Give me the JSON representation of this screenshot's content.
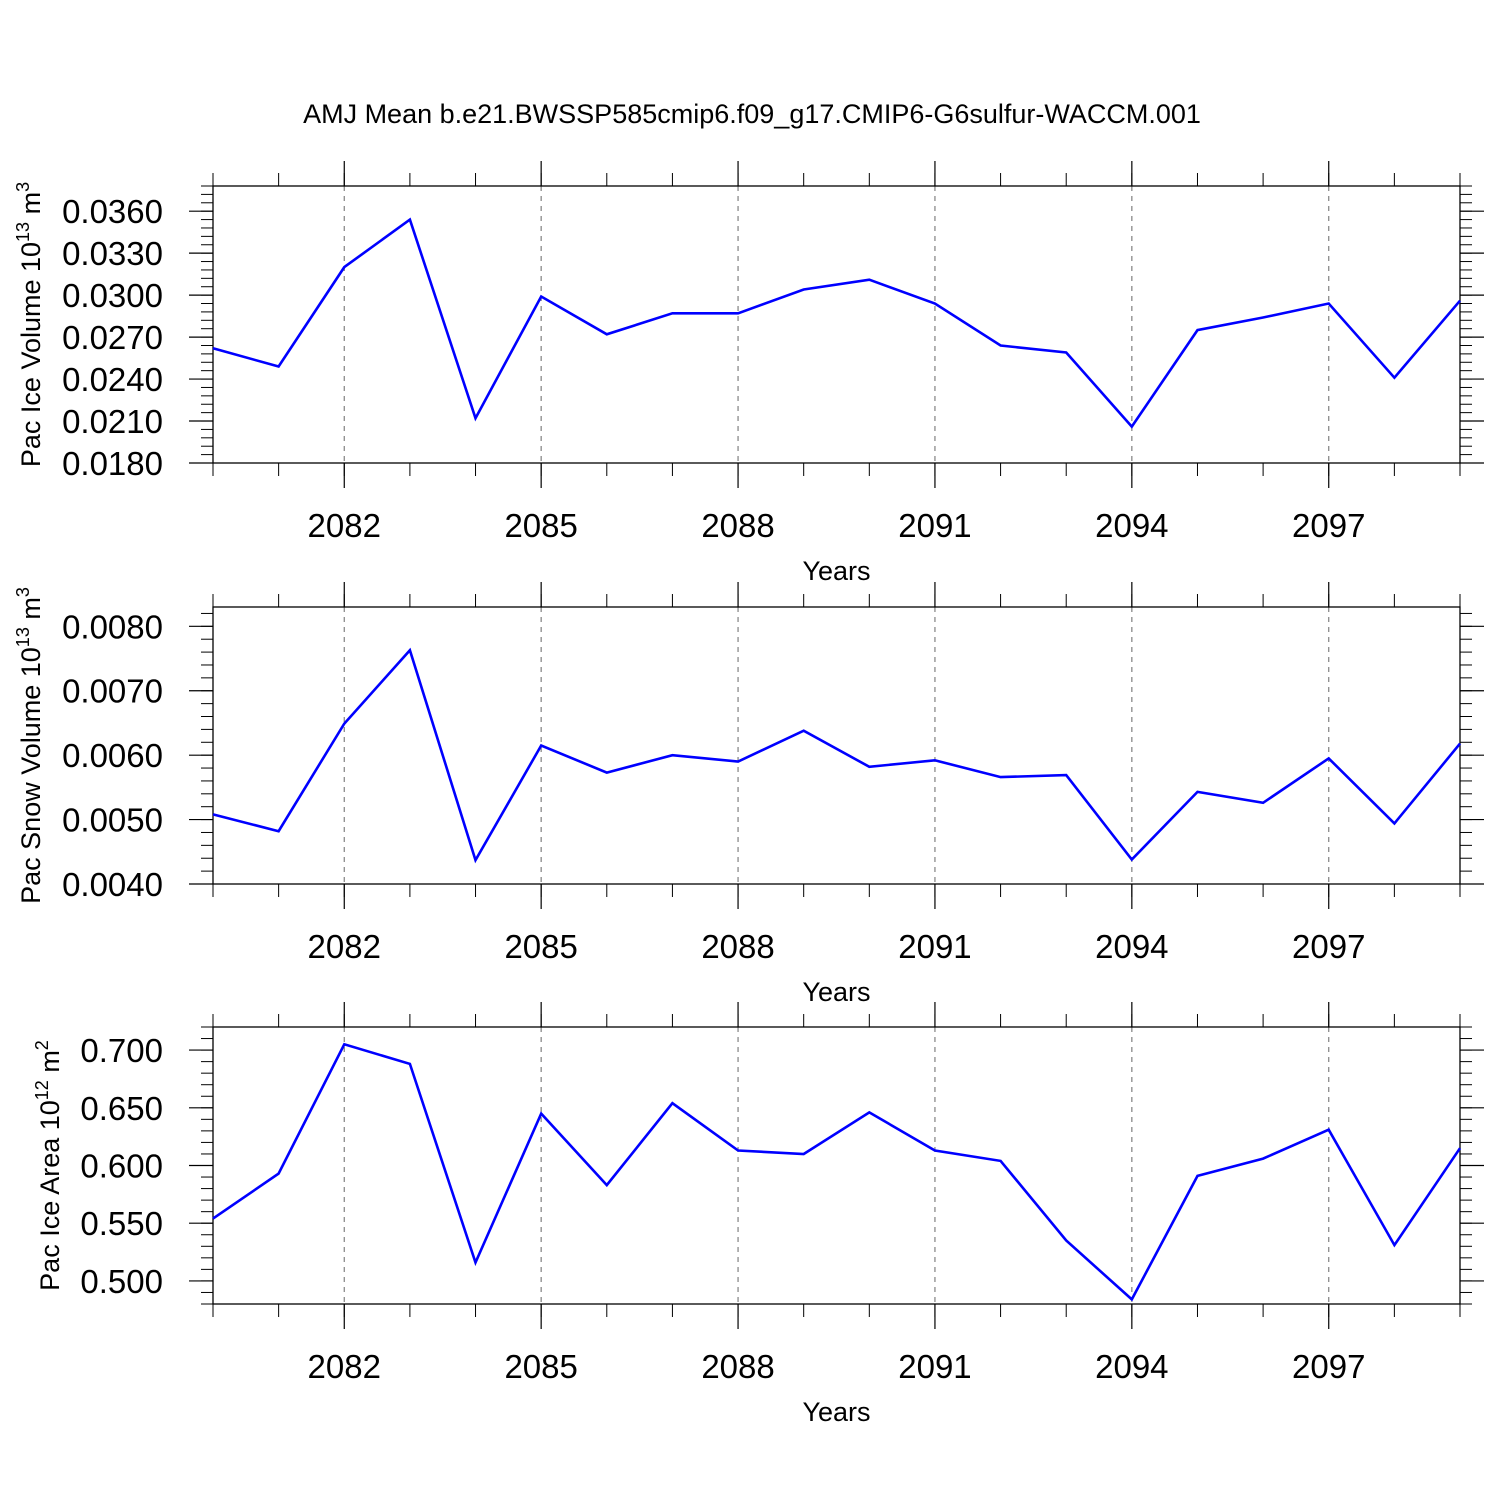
{
  "title": "AMJ Mean b.e21.BWSSP585cmip6.f09_g17.CMIP6-G6sulfur-WACCM.001",
  "colors": {
    "line": "#0000ff",
    "axes": "#000000",
    "grid": "#808080"
  },
  "chart_data": [
    {
      "type": "line",
      "ylabel_main": "Pac Ice Volume 10",
      "ylabel_exp": "13",
      "ylabel_unit": " m",
      "ylabel_unit_exp": "3",
      "xlabel": "Years",
      "xlim": [
        2080,
        2099
      ],
      "ylim": [
        0.018,
        0.0378
      ],
      "yticks": [
        0.018,
        0.021,
        0.024,
        0.027,
        0.03,
        0.033,
        0.036
      ],
      "ytick_labels": [
        "0.0180",
        "0.0210",
        "0.0240",
        "0.0270",
        "0.0300",
        "0.0330",
        "0.0360"
      ],
      "xticks": [
        2082,
        2085,
        2088,
        2091,
        2094,
        2097
      ],
      "xtick_labels": [
        "2082",
        "2085",
        "2088",
        "2091",
        "2094",
        "2097"
      ],
      "grid": "vertical dashed at major x ticks",
      "x": [
        2080,
        2081,
        2082,
        2083,
        2084,
        2085,
        2086,
        2087,
        2088,
        2089,
        2090,
        2091,
        2092,
        2093,
        2094,
        2095,
        2096,
        2097,
        2098,
        2099
      ],
      "values": [
        0.0262,
        0.0249,
        0.032,
        0.0354,
        0.0212,
        0.0299,
        0.0272,
        0.0287,
        0.0287,
        0.0304,
        0.0311,
        0.0294,
        0.0264,
        0.0259,
        0.0206,
        0.0275,
        0.0284,
        0.0294,
        0.0241,
        0.0296
      ]
    },
    {
      "type": "line",
      "ylabel_main": "Pac Snow Volume 10",
      "ylabel_exp": "13",
      "ylabel_unit": " m",
      "ylabel_unit_exp": "3",
      "xlabel": "Years",
      "xlim": [
        2080,
        2099
      ],
      "ylim": [
        0.004,
        0.0083
      ],
      "yticks": [
        0.004,
        0.005,
        0.006,
        0.007,
        0.008
      ],
      "ytick_labels": [
        "0.0040",
        "0.0050",
        "0.0060",
        "0.0070",
        "0.0080"
      ],
      "xticks": [
        2082,
        2085,
        2088,
        2091,
        2094,
        2097
      ],
      "xtick_labels": [
        "2082",
        "2085",
        "2088",
        "2091",
        "2094",
        "2097"
      ],
      "grid": "vertical dashed at major x ticks",
      "x": [
        2080,
        2081,
        2082,
        2083,
        2084,
        2085,
        2086,
        2087,
        2088,
        2089,
        2090,
        2091,
        2092,
        2093,
        2094,
        2095,
        2096,
        2097,
        2098,
        2099
      ],
      "values": [
        0.00508,
        0.00482,
        0.00649,
        0.00763,
        0.00437,
        0.00615,
        0.00573,
        0.006,
        0.0059,
        0.00638,
        0.00582,
        0.00592,
        0.00566,
        0.00569,
        0.00438,
        0.00543,
        0.00526,
        0.00595,
        0.00494,
        0.00618
      ]
    },
    {
      "type": "line",
      "ylabel_main": "Pac Ice Area 10",
      "ylabel_exp": "12",
      "ylabel_unit": " m",
      "ylabel_unit_exp": "2",
      "xlabel": "Years",
      "xlim": [
        2080,
        2099
      ],
      "ylim": [
        0.48,
        0.72
      ],
      "yticks": [
        0.5,
        0.55,
        0.6,
        0.65,
        0.7
      ],
      "ytick_labels": [
        "0.500",
        "0.550",
        "0.600",
        "0.650",
        "0.700"
      ],
      "xticks": [
        2082,
        2085,
        2088,
        2091,
        2094,
        2097
      ],
      "xtick_labels": [
        "2082",
        "2085",
        "2088",
        "2091",
        "2094",
        "2097"
      ],
      "grid": "vertical dashed at major x ticks",
      "x": [
        2080,
        2081,
        2082,
        2083,
        2084,
        2085,
        2086,
        2087,
        2088,
        2089,
        2090,
        2091,
        2092,
        2093,
        2094,
        2095,
        2096,
        2097,
        2098,
        2099
      ],
      "values": [
        0.554,
        0.593,
        0.705,
        0.688,
        0.516,
        0.645,
        0.583,
        0.654,
        0.613,
        0.61,
        0.646,
        0.613,
        0.604,
        0.535,
        0.484,
        0.591,
        0.606,
        0.631,
        0.531,
        0.615
      ]
    }
  ]
}
